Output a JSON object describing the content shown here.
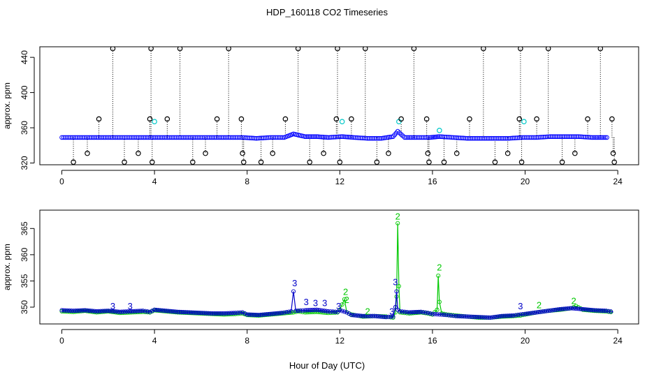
{
  "title": "HDP_160118  CO2 Timeseries",
  "xlabel": "Hour of Day (UTC)",
  "chart_data": [
    {
      "type": "scatter",
      "ylabel": "approx. ppm",
      "xlim": [
        0,
        24
      ],
      "ylim": [
        318,
        452
      ],
      "xticks": [
        0,
        4,
        8,
        12,
        16,
        20,
        24
      ],
      "yticks": [
        320,
        360,
        400,
        440
      ],
      "ytick_labels": [
        "320",
        "360",
        "400",
        "440"
      ],
      "xtick_labels": [
        "0",
        "4",
        "8",
        "12",
        "16",
        "20",
        "24"
      ],
      "grid": false,
      "series": [
        {
          "color": "#000000",
          "marker": "circle",
          "x": [
            0.5,
            1.1,
            1.6,
            2.2,
            2.7,
            3.3,
            3.8,
            3.85,
            3.9,
            4.55,
            5.1,
            5.65,
            6.2,
            6.7,
            7.2,
            7.75,
            7.8,
            7.85,
            8.6,
            9.1,
            9.65,
            10.2,
            10.7,
            11.3,
            11.85,
            11.9,
            12.0,
            12.5,
            13.1,
            13.6,
            14.1,
            14.65,
            15.2,
            15.75,
            15.8,
            15.85,
            16.5,
            17.05,
            17.6,
            18.2,
            18.7,
            19.25,
            19.75,
            19.8,
            19.85,
            20.5,
            21.0,
            21.6,
            22.15,
            22.7,
            23.25,
            23.75,
            23.8,
            23.85
          ],
          "y": [
            321,
            331,
            370,
            450,
            321,
            331,
            370,
            450,
            321,
            370,
            450,
            321,
            331,
            370,
            450,
            370,
            331,
            321,
            321,
            331,
            370,
            450,
            321,
            331,
            370,
            450,
            321,
            370,
            450,
            321,
            331,
            370,
            450,
            370,
            331,
            321,
            321,
            331,
            370,
            450,
            321,
            331,
            370,
            450,
            321,
            370,
            450,
            321,
            331,
            370,
            450,
            370,
            331,
            321
          ]
        },
        {
          "color": "#00c8c8",
          "marker": "circle",
          "x": [
            4.0,
            12.1,
            14.55,
            16.3,
            19.95
          ],
          "y": [
            367,
            367,
            367,
            357,
            367
          ]
        },
        {
          "color": "#0000ff",
          "marker": "circle",
          "band": true,
          "x": [
            0.0,
            0.6,
            1.2,
            1.8,
            2.4,
            3.0,
            3.6,
            4.2,
            4.8,
            5.4,
            6.0,
            6.6,
            7.2,
            7.8,
            8.4,
            9.0,
            9.6,
            10.0,
            10.5,
            11.0,
            11.5,
            12.1,
            12.6,
            13.2,
            13.8,
            14.3,
            14.5,
            14.8,
            15.3,
            15.9,
            16.3,
            16.9,
            17.5,
            18.1,
            18.7,
            19.3,
            19.9,
            20.5,
            21.1,
            21.7,
            22.3,
            22.9,
            23.6
          ],
          "y": [
            349,
            349,
            349,
            349,
            349,
            349,
            349,
            349,
            349,
            349,
            349,
            349,
            349,
            349,
            348,
            349,
            349,
            353,
            350,
            350,
            349,
            350,
            349,
            348,
            348,
            350,
            356,
            349,
            349,
            349,
            350,
            349,
            348,
            348,
            348,
            348,
            349,
            349,
            350,
            350,
            350,
            349,
            349
          ]
        }
      ]
    },
    {
      "type": "line",
      "ylabel": "approx. ppm",
      "xlim": [
        0,
        24
      ],
      "ylim": [
        346.8,
        368.5
      ],
      "xticks": [
        0,
        4,
        8,
        12,
        16,
        20,
        24
      ],
      "yticks": [
        350,
        355,
        360,
        365
      ],
      "ytick_labels": [
        "350",
        "355",
        "360",
        "365"
      ],
      "xtick_labels": [
        "0",
        "4",
        "8",
        "12",
        "16",
        "20",
        "24"
      ],
      "grid": false,
      "series": [
        {
          "name": "2",
          "color": "#00c800",
          "x": [
            0.0,
            0.5,
            1.0,
            1.5,
            2.0,
            2.5,
            3.0,
            3.5,
            3.8,
            4.0,
            4.5,
            5.0,
            5.5,
            6.0,
            6.5,
            7.0,
            7.5,
            7.8,
            8.0,
            8.5,
            9.0,
            9.5,
            10.0,
            10.2,
            10.5,
            11.0,
            11.5,
            11.9,
            12.0,
            12.2,
            12.3,
            12.5,
            13.0,
            13.5,
            14.0,
            14.3,
            14.4,
            14.45,
            14.5,
            14.55,
            14.6,
            15.0,
            15.5,
            15.8,
            16.0,
            16.2,
            16.25,
            16.3,
            16.4,
            16.6,
            17.0,
            17.5,
            18.0,
            18.5,
            19.0,
            19.5,
            19.8,
            20.0,
            20.5,
            21.0,
            21.5,
            22.0,
            22.2,
            22.5,
            23.0,
            23.5,
            23.8
          ],
          "y": [
            349.2,
            349.1,
            349.3,
            349.0,
            349.2,
            348.9,
            349.0,
            349.1,
            349.0,
            349.4,
            349.2,
            349.0,
            348.9,
            348.8,
            348.7,
            348.6,
            348.7,
            348.8,
            348.5,
            348.4,
            348.6,
            348.8,
            349.0,
            349.2,
            349.0,
            349.1,
            348.9,
            349.0,
            349.5,
            351.5,
            349.0,
            348.6,
            348.2,
            348.3,
            348.2,
            348.0,
            349.0,
            352.0,
            366.0,
            354.0,
            349.0,
            348.8,
            349.0,
            348.8,
            348.6,
            349.5,
            356.0,
            351.0,
            348.8,
            348.6,
            348.4,
            348.2,
            348.0,
            348.0,
            348.2,
            348.3,
            348.4,
            348.6,
            349.0,
            349.3,
            349.5,
            349.8,
            350.2,
            349.5,
            349.3,
            349.2,
            349.0
          ]
        },
        {
          "name": "3",
          "color": "#0000c8",
          "x": [
            0.0,
            0.5,
            1.0,
            1.5,
            2.0,
            2.5,
            3.0,
            3.5,
            3.8,
            4.0,
            4.5,
            5.0,
            5.5,
            6.0,
            6.5,
            7.0,
            7.5,
            7.8,
            8.0,
            8.5,
            9.0,
            9.5,
            9.9,
            10.0,
            10.1,
            10.5,
            11.0,
            11.5,
            11.9,
            12.0,
            12.3,
            12.5,
            13.0,
            13.5,
            14.0,
            14.3,
            14.4,
            14.45,
            14.5,
            14.6,
            15.0,
            15.5,
            15.8,
            16.0,
            16.3,
            16.6,
            17.0,
            17.5,
            18.0,
            18.5,
            19.0,
            19.5,
            19.8,
            20.0,
            20.5,
            21.0,
            21.5,
            22.0,
            22.5,
            23.0,
            23.5,
            23.8
          ],
          "y": [
            349.4,
            349.3,
            349.4,
            349.2,
            349.3,
            349.1,
            349.2,
            349.3,
            349.1,
            349.5,
            349.3,
            349.1,
            349.0,
            348.9,
            348.8,
            348.8,
            348.9,
            349.0,
            348.6,
            348.5,
            348.7,
            348.9,
            349.2,
            353.0,
            349.3,
            349.4,
            349.5,
            349.2,
            349.1,
            349.4,
            349.0,
            348.5,
            348.3,
            348.3,
            348.1,
            348.2,
            350.0,
            353.0,
            349.5,
            349.2,
            349.0,
            349.1,
            348.9,
            348.7,
            348.6,
            348.5,
            348.3,
            348.2,
            348.1,
            348.0,
            348.3,
            348.4,
            348.6,
            348.7,
            349.0,
            349.3,
            349.6,
            349.8,
            349.6,
            349.4,
            349.3,
            349.1
          ]
        }
      ],
      "annotations": [
        {
          "text": "3",
          "x": 2.2,
          "y": 349.6,
          "color": "#0000c8"
        },
        {
          "text": "3",
          "x": 2.95,
          "y": 349.6,
          "color": "#0000c8"
        },
        {
          "text": "3",
          "x": 10.05,
          "y": 354.0,
          "color": "#0000c8"
        },
        {
          "text": "3",
          "x": 10.55,
          "y": 350.4,
          "color": "#0000c8"
        },
        {
          "text": "3",
          "x": 10.95,
          "y": 350.2,
          "color": "#0000c8"
        },
        {
          "text": "3",
          "x": 11.35,
          "y": 350.2,
          "color": "#0000c8"
        },
        {
          "text": "3",
          "x": 11.95,
          "y": 349.6,
          "color": "#0000c8"
        },
        {
          "text": "3",
          "x": 14.4,
          "y": 354.2,
          "color": "#0000c8"
        },
        {
          "text": "3",
          "x": 14.25,
          "y": 348.6,
          "color": "#0000c8"
        },
        {
          "text": "3",
          "x": 19.8,
          "y": 349.6,
          "color": "#0000c8"
        },
        {
          "text": "2",
          "x": 12.25,
          "y": 352.3,
          "color": "#00c800"
        },
        {
          "text": "2",
          "x": 12.3,
          "y": 350.8,
          "color": "#00c800"
        },
        {
          "text": "2",
          "x": 14.5,
          "y": 366.7,
          "color": "#00c800"
        },
        {
          "text": "2",
          "x": 16.3,
          "y": 357.0,
          "color": "#00c800"
        },
        {
          "text": "2",
          "x": 13.2,
          "y": 348.6,
          "color": "#00c800"
        },
        {
          "text": "2",
          "x": 20.6,
          "y": 349.8,
          "color": "#00c800"
        },
        {
          "text": "2",
          "x": 22.1,
          "y": 350.6,
          "color": "#00c800"
        }
      ]
    }
  ]
}
